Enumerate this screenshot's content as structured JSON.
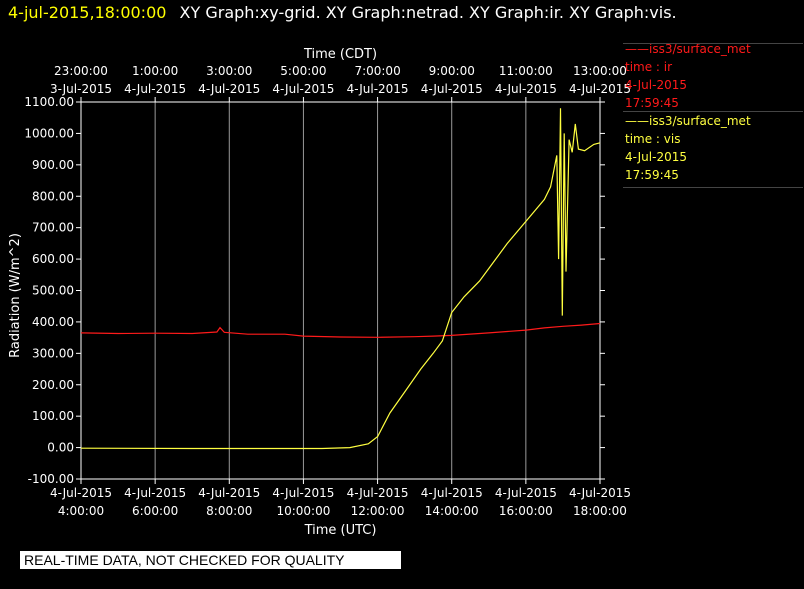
{
  "header": {
    "timestamp": "4-jul-2015,18:00:00",
    "titles": "XY Graph:xy-grid.  XY Graph:netrad.  XY Graph:ir.  XY Graph:vis."
  },
  "legend": [
    {
      "label": "iss3/surface_met",
      "var": "time : ir",
      "date": "4-Jul-2015",
      "time": "17:59:45",
      "color": "#ff1a1a"
    },
    {
      "label": "iss3/surface_met",
      "var": "time : vis",
      "date": "4-Jul-2015",
      "time": "17:59:45",
      "color": "#ffff40"
    }
  ],
  "notice": "REAL-TIME DATA, NOT CHECKED FOR QUALITY",
  "chart_data": {
    "type": "line",
    "xlabel": "Time (UTC)",
    "x2label": "Time (CDT)",
    "ylabel": "Radiation (W/m^2)",
    "xlim": [
      "2015-07-04T04:00",
      "2015-07-04T18:00"
    ],
    "ylim": [
      -100,
      1100
    ],
    "grid": true,
    "x_ticks": [
      {
        "t": "2015-07-04T04:00",
        "date": "4-Jul-2015",
        "time": "4:00:00"
      },
      {
        "t": "2015-07-04T06:00",
        "date": "4-Jul-2015",
        "time": "6:00:00"
      },
      {
        "t": "2015-07-04T08:00",
        "date": "4-Jul-2015",
        "time": "8:00:00"
      },
      {
        "t": "2015-07-04T10:00",
        "date": "4-Jul-2015",
        "time": "10:00:00"
      },
      {
        "t": "2015-07-04T12:00",
        "date": "4-Jul-2015",
        "time": "12:00:00"
      },
      {
        "t": "2015-07-04T14:00",
        "date": "4-Jul-2015",
        "time": "14:00:00"
      },
      {
        "t": "2015-07-04T16:00",
        "date": "4-Jul-2015",
        "time": "16:00:00"
      },
      {
        "t": "2015-07-04T18:00",
        "date": "4-Jul-2015",
        "time": "18:00:00"
      }
    ],
    "x2_ticks": [
      {
        "t": "2015-07-04T04:00",
        "time": "23:00:00",
        "date": "3-Jul-2015"
      },
      {
        "t": "2015-07-04T06:00",
        "time": "1:00:00",
        "date": "4-Jul-2015"
      },
      {
        "t": "2015-07-04T08:00",
        "time": "3:00:00",
        "date": "4-Jul-2015"
      },
      {
        "t": "2015-07-04T10:00",
        "time": "5:00:00",
        "date": "4-Jul-2015"
      },
      {
        "t": "2015-07-04T12:00",
        "time": "7:00:00",
        "date": "4-Jul-2015"
      },
      {
        "t": "2015-07-04T14:00",
        "time": "9:00:00",
        "date": "4-Jul-2015"
      },
      {
        "t": "2015-07-04T16:00",
        "time": "11:00:00",
        "date": "4-Jul-2015"
      },
      {
        "t": "2015-07-04T18:00",
        "time": "13:00:00",
        "date": "4-Jul-2015"
      }
    ],
    "y_ticks": [
      "-100.00",
      "0.00",
      "100.00",
      "200.00",
      "300.00",
      "400.00",
      "500.00",
      "600.00",
      "700.00",
      "800.00",
      "900.00",
      "1000.00",
      "1100.00"
    ],
    "series": [
      {
        "name": "time : ir",
        "color": "#ff1a1a",
        "points": [
          [
            "2015-07-04T04:00",
            365
          ],
          [
            "2015-07-04T05:00",
            363
          ],
          [
            "2015-07-04T06:00",
            364
          ],
          [
            "2015-07-04T07:00",
            363
          ],
          [
            "2015-07-04T07:40",
            368
          ],
          [
            "2015-07-04T07:45",
            382
          ],
          [
            "2015-07-04T07:52",
            367
          ],
          [
            "2015-07-04T08:30",
            361
          ],
          [
            "2015-07-04T09:30",
            361
          ],
          [
            "2015-07-04T10:00",
            355
          ],
          [
            "2015-07-04T11:00",
            352
          ],
          [
            "2015-07-04T12:00",
            351
          ],
          [
            "2015-07-04T13:00",
            353
          ],
          [
            "2015-07-04T13:30",
            355
          ],
          [
            "2015-07-04T14:00",
            357
          ],
          [
            "2015-07-04T15:00",
            365
          ],
          [
            "2015-07-04T16:00",
            374
          ],
          [
            "2015-07-04T16:30",
            381
          ],
          [
            "2015-07-04T17:00",
            386
          ],
          [
            "2015-07-04T17:30",
            390
          ],
          [
            "2015-07-04T18:00",
            395
          ]
        ]
      },
      {
        "name": "time : vis",
        "color": "#ffff40",
        "points": [
          [
            "2015-07-04T04:00",
            -2
          ],
          [
            "2015-07-04T07:00",
            -3
          ],
          [
            "2015-07-04T09:00",
            -3
          ],
          [
            "2015-07-04T10:30",
            -3
          ],
          [
            "2015-07-04T11:15",
            0
          ],
          [
            "2015-07-04T11:45",
            12
          ],
          [
            "2015-07-04T12:00",
            35
          ],
          [
            "2015-07-04T12:20",
            110
          ],
          [
            "2015-07-04T12:45",
            180
          ],
          [
            "2015-07-04T13:10",
            250
          ],
          [
            "2015-07-04T13:30",
            300
          ],
          [
            "2015-07-04T13:45",
            340
          ],
          [
            "2015-07-04T14:00",
            430
          ],
          [
            "2015-07-04T14:20",
            480
          ],
          [
            "2015-07-04T14:45",
            530
          ],
          [
            "2015-07-04T15:00",
            570
          ],
          [
            "2015-07-04T15:30",
            650
          ],
          [
            "2015-07-04T16:00",
            720
          ],
          [
            "2015-07-04T16:30",
            790
          ],
          [
            "2015-07-04T16:40",
            830
          ],
          [
            "2015-07-04T16:50",
            930
          ],
          [
            "2015-07-04T16:53",
            600
          ],
          [
            "2015-07-04T16:56",
            1080
          ],
          [
            "2015-07-04T16:59",
            420
          ],
          [
            "2015-07-04T17:02",
            1000
          ],
          [
            "2015-07-04T17:05",
            560
          ],
          [
            "2015-07-04T17:10",
            980
          ],
          [
            "2015-07-04T17:15",
            940
          ],
          [
            "2015-07-04T17:20",
            1030
          ],
          [
            "2015-07-04T17:25",
            950
          ],
          [
            "2015-07-04T17:35",
            945
          ],
          [
            "2015-07-04T17:50",
            965
          ],
          [
            "2015-07-04T18:00",
            970
          ]
        ]
      }
    ]
  }
}
